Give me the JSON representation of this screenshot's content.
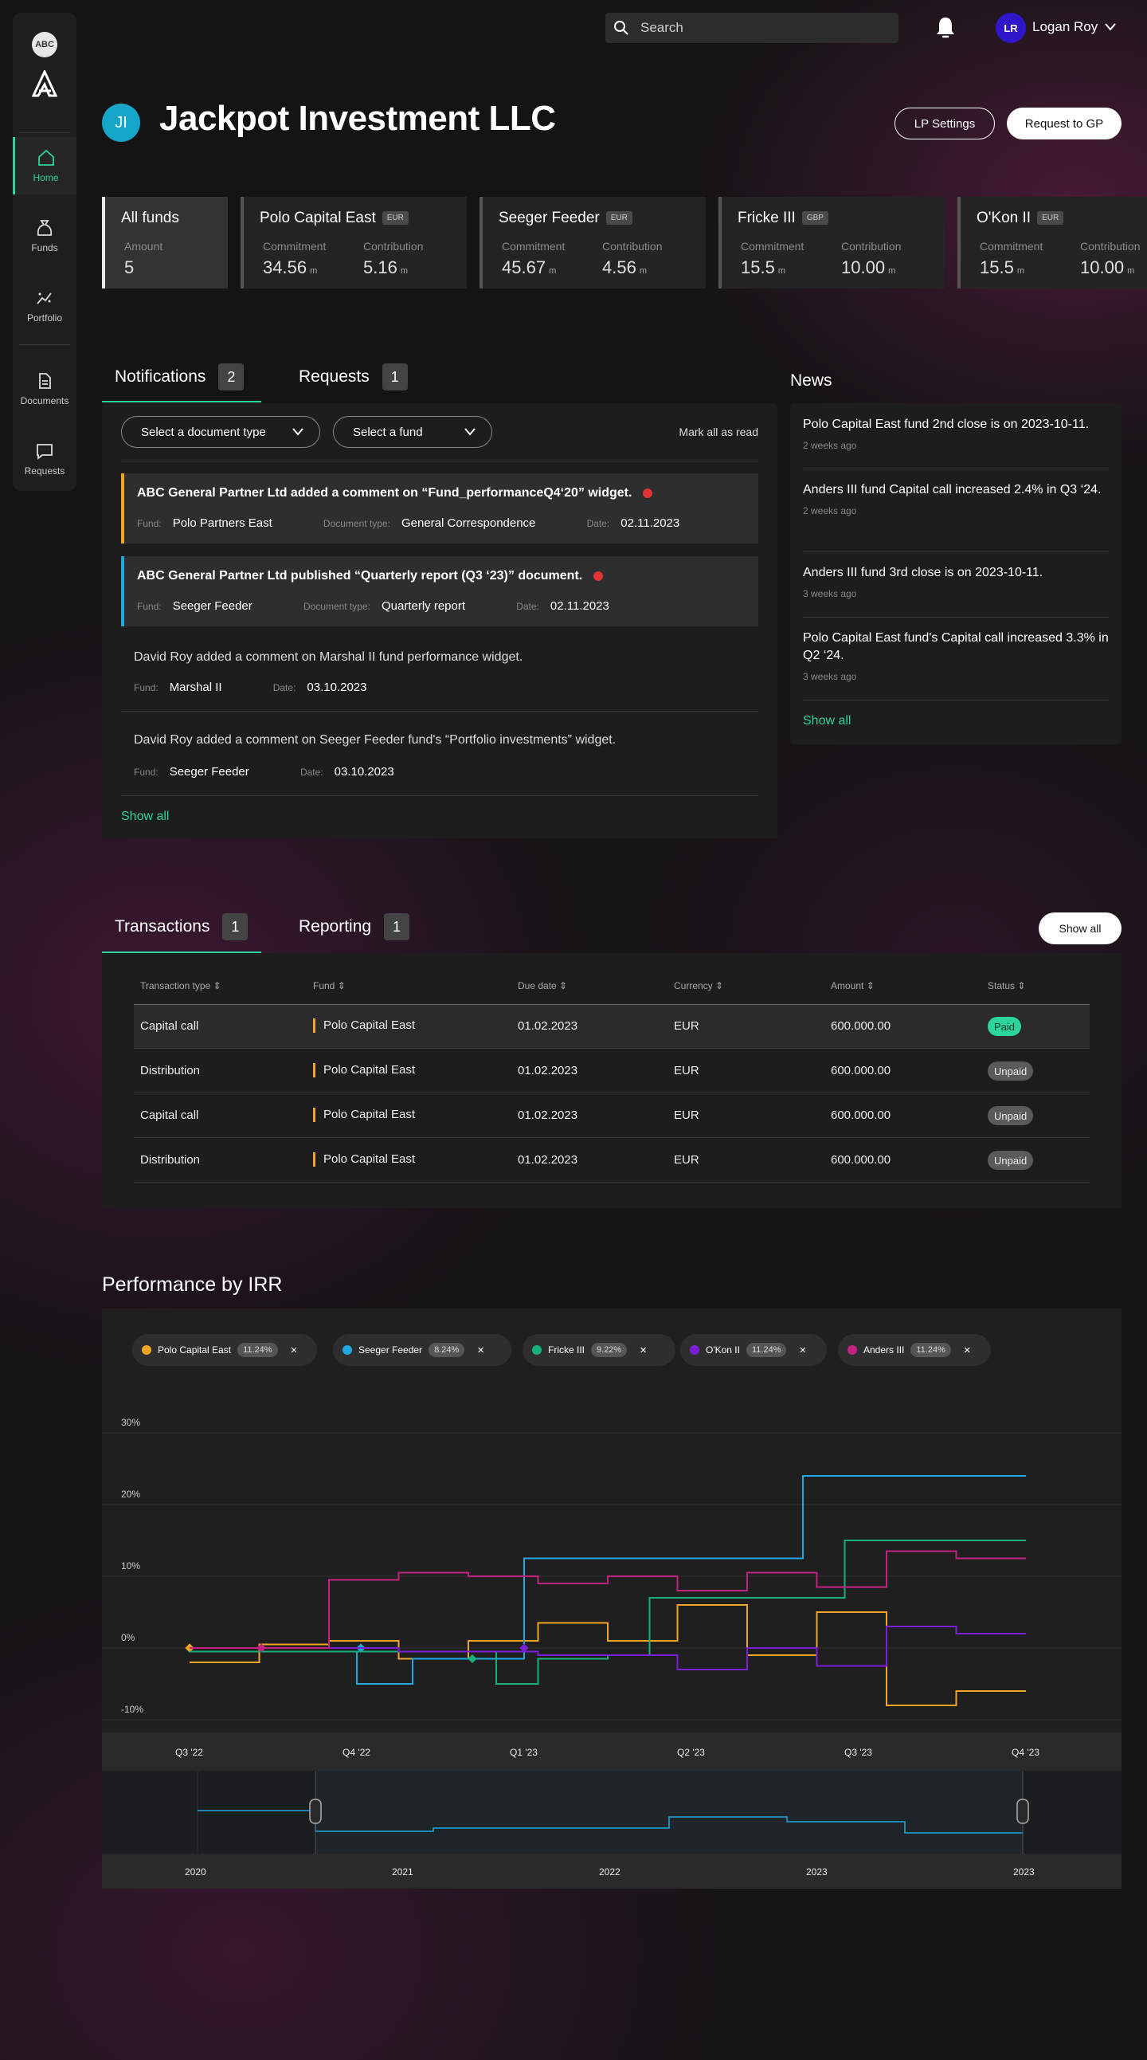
{
  "sidebar": {
    "logo_text": "ABC",
    "items": [
      {
        "label": "Home",
        "icon": "home-icon",
        "active": true
      },
      {
        "label": "Funds",
        "icon": "funds-icon"
      },
      {
        "label": "Portfolio",
        "icon": "portfolio-icon"
      },
      {
        "label": "Documents",
        "icon": "documents-icon"
      },
      {
        "label": "Requests",
        "icon": "requests-icon"
      }
    ]
  },
  "topbar": {
    "search_placeholder": "Search",
    "user_initials": "LR",
    "user_name": "Logan Roy"
  },
  "header": {
    "initials": "JI",
    "company": "Jackpot Investment LLC",
    "lp_settings": "LP Settings",
    "request_gp": "Request to GP"
  },
  "funds": {
    "all": {
      "title": "All funds",
      "amount_label": "Amount",
      "amount": "5"
    },
    "cards": [
      {
        "name": "Polo Capital East",
        "currency": "EUR",
        "commitment_label": "Commitment",
        "commitment": "34.56",
        "contribution_label": "Contribution",
        "contribution": "5.16",
        "unit": "m"
      },
      {
        "name": "Seeger Feeder",
        "currency": "EUR",
        "commitment_label": "Commitment",
        "commitment": "45.67",
        "contribution_label": "Contribution",
        "contribution": "4.56",
        "unit": "m"
      },
      {
        "name": "Fricke III",
        "currency": "GBP",
        "commitment_label": "Commitment",
        "commitment": "15.5",
        "contribution_label": "Contribution",
        "contribution": "10.00",
        "unit": "m"
      },
      {
        "name": "O'Kon II",
        "currency": "EUR",
        "commitment_label": "Commitment",
        "commitment": "15.5",
        "contribution_label": "Contribution",
        "contribution": "10.00",
        "unit": "m"
      }
    ]
  },
  "notifications": {
    "tab_label": "Notifications",
    "tab_count": "2",
    "requests_label": "Requests",
    "requests_count": "1",
    "doc_type_select": "Select a document type",
    "fund_select": "Select a fund",
    "mark_all": "Mark all as read",
    "show_all": "Show all",
    "items": [
      {
        "text": "ABC General Partner Ltd added a comment on “Fund_performanceQ4‘20” widget.",
        "fund_label": "Fund:",
        "fund": "Polo Partners East",
        "doctype_label": "Document type:",
        "doctype": "General Correspondence",
        "date_label": "Date:",
        "date": "02.11.2023",
        "unread": true,
        "accent": "#f0a524"
      },
      {
        "text": "ABC General Partner Ltd published “Quarterly report (Q3 ‘23)” document.",
        "fund_label": "Fund:",
        "fund": "Seeger Feeder",
        "doctype_label": "Document type:",
        "doctype": "Quarterly report",
        "date_label": "Date:",
        "date": "02.11.2023",
        "unread": true,
        "accent": "#1fa9e0"
      },
      {
        "text": "David Roy added a comment on Marshal II fund performance widget.",
        "fund_label": "Fund:",
        "fund": "Marshal II",
        "date_label": "Date:",
        "date": "03.10.2023"
      },
      {
        "text": "David Roy added a comment on Seeger Feeder fund's “Portfolio investments” widget.",
        "fund_label": "Fund:",
        "fund": "Seeger Feeder",
        "date_label": "Date:",
        "date": "03.10.2023"
      }
    ]
  },
  "news": {
    "title": "News",
    "show_all": "Show all",
    "items": [
      {
        "headline": "Polo Capital East fund 2nd close is on 2023-10-11.",
        "ago": "2 weeks ago"
      },
      {
        "headline": "Anders III fund Capital call increased 2.4% in Q3 ‘24.",
        "ago": "2 weeks ago"
      },
      {
        "headline": "Anders III fund 3rd close is on 2023-10-11.",
        "ago": "3 weeks ago"
      },
      {
        "headline": "Polo Capital East fund's Capital call increased 3.3% in Q2 ‘24.",
        "ago": "3 weeks ago"
      }
    ]
  },
  "transactions": {
    "tab_label": "Transactions",
    "tab_count": "1",
    "reporting_label": "Reporting",
    "reporting_count": "1",
    "show_all": "Show all",
    "columns": [
      "Transaction type",
      "Fund",
      "Due date",
      "Currency",
      "Amount",
      "Status"
    ],
    "rows": [
      {
        "type": "Capital call",
        "fund": "Polo Capital East",
        "due": "01.02.2023",
        "currency": "EUR",
        "amount": "600.000.00",
        "status": "Paid"
      },
      {
        "type": "Distribution",
        "fund": "Polo Capital East",
        "due": "01.02.2023",
        "currency": "EUR",
        "amount": "600.000.00",
        "status": "Unpaid"
      },
      {
        "type": "Capital call",
        "fund": "Polo Capital East",
        "due": "01.02.2023",
        "currency": "EUR",
        "amount": "600.000.00",
        "status": "Unpaid"
      },
      {
        "type": "Distribution",
        "fund": "Polo Capital East",
        "due": "01.02.2023",
        "currency": "EUR",
        "amount": "600.000.00",
        "status": "Unpaid"
      }
    ]
  },
  "colors": {
    "accent": "#2bd59a",
    "paid": "#2bd59a",
    "unpaid": "#5a5a5a"
  },
  "chart_data": {
    "type": "line",
    "title": "Performance by IRR",
    "step": true,
    "ylim": [
      -10,
      30
    ],
    "yticks": [
      "30%",
      "20%",
      "10%",
      "0%",
      "-10%"
    ],
    "ytick_values": [
      30,
      20,
      10,
      0,
      -10
    ],
    "xlim": [
      0,
      15
    ],
    "xticks": [
      {
        "label": "Q3 '22",
        "x": 0
      },
      {
        "label": "Q4 '22",
        "x": 3
      },
      {
        "label": "Q1 '23",
        "x": 6
      },
      {
        "label": "Q2 '23",
        "x": 9
      },
      {
        "label": "Q3 '23",
        "x": 12
      },
      {
        "label": "Q4 '23",
        "x": 15
      }
    ],
    "series": [
      {
        "name": "Polo Capital East",
        "irr": "11.24%",
        "color": "#f0a524",
        "points": [
          [
            0,
            -2
          ],
          [
            1.25,
            0.5
          ],
          [
            2.5,
            1
          ],
          [
            3.75,
            -1.5
          ],
          [
            5,
            1
          ],
          [
            6.25,
            3.5
          ],
          [
            7.5,
            1
          ],
          [
            8.75,
            6
          ],
          [
            10,
            -1
          ],
          [
            11.25,
            5
          ],
          [
            12.5,
            -8
          ],
          [
            13.75,
            -6
          ],
          [
            15,
            -6
          ]
        ]
      },
      {
        "name": "Seeger Feeder",
        "irr": "8.24%",
        "color": "#1fa9e0",
        "points": [
          [
            0,
            -0.5
          ],
          [
            3,
            -5
          ],
          [
            4,
            -1.5
          ],
          [
            6,
            12.5
          ],
          [
            11,
            24
          ],
          [
            15,
            24
          ]
        ]
      },
      {
        "name": "Fricke III",
        "irr": "9.22%",
        "color": "#17b07a",
        "points": [
          [
            0,
            -0.5
          ],
          [
            5.5,
            -5
          ],
          [
            6.25,
            -1.5
          ],
          [
            7.5,
            -1
          ],
          [
            8.25,
            7
          ],
          [
            11.75,
            15
          ],
          [
            15,
            15
          ]
        ]
      },
      {
        "name": "O'Kon II",
        "irr": "11.24%",
        "color": "#7a1fd6",
        "points": [
          [
            0,
            0
          ],
          [
            3.75,
            -0.5
          ],
          [
            6.25,
            -1
          ],
          [
            8.75,
            -3
          ],
          [
            10,
            0
          ],
          [
            11.25,
            -2.5
          ],
          [
            12.5,
            3
          ],
          [
            13.75,
            2
          ],
          [
            15,
            2
          ]
        ]
      },
      {
        "name": "Anders III",
        "irr": "11.24%",
        "color": "#c42283",
        "points": [
          [
            0,
            0
          ],
          [
            2.5,
            9.5
          ],
          [
            3.75,
            10.5
          ],
          [
            5,
            10
          ],
          [
            6.25,
            9
          ],
          [
            7.5,
            10
          ],
          [
            8.75,
            8
          ],
          [
            10,
            10.5
          ],
          [
            11.25,
            8.5
          ],
          [
            12.5,
            13.5
          ],
          [
            13.75,
            12.5
          ],
          [
            15,
            12.5
          ]
        ]
      }
    ],
    "navigator": {
      "labels": [
        "2020",
        "2021",
        "2022",
        "2023",
        "2023"
      ]
    }
  }
}
